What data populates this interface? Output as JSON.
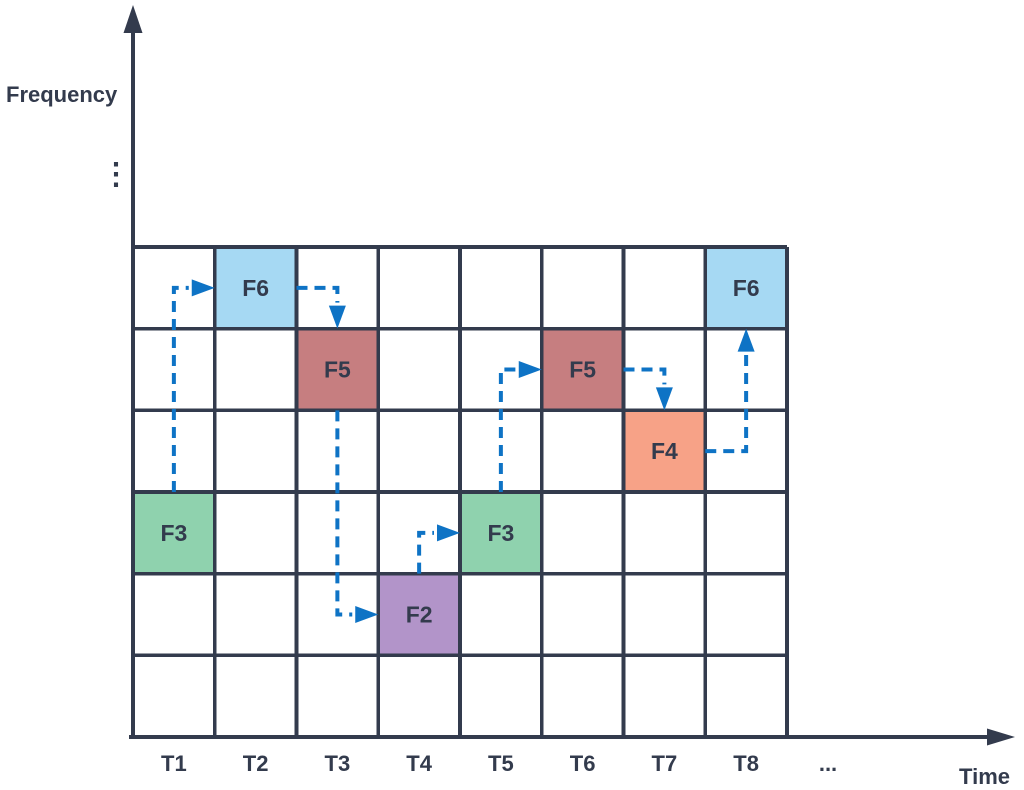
{
  "colors": {
    "navy_ink": "#333b4d",
    "arrow_blue": "#0e73c5",
    "cell_fill": {
      "F2": "#b294c9",
      "F3": "#8fd2ae",
      "F4": "#f7a287",
      "F5": "#c67e80",
      "F6": "#a6d9f3"
    }
  },
  "y_axis": {
    "label": "Frequency",
    "continuation_ellipsis": "⋮"
  },
  "x_axis": {
    "label": "Time",
    "tick_labels": [
      "T1",
      "T2",
      "T3",
      "T4",
      "T5",
      "T6",
      "T7",
      "T8"
    ],
    "continuation_ellipsis": "..."
  },
  "grid": {
    "columns": 8,
    "rows": 6,
    "frequency_rows_top_to_bottom": [
      "F6",
      "F5",
      "F4",
      "F3",
      "F2",
      ""
    ]
  },
  "hop_sequence": [
    {
      "time": "T1",
      "frequency": "F3",
      "col": 1,
      "row": 4
    },
    {
      "time": "T2",
      "frequency": "F6",
      "col": 2,
      "row": 1
    },
    {
      "time": "T3",
      "frequency": "F5",
      "col": 3,
      "row": 2
    },
    {
      "time": "T4",
      "frequency": "F2",
      "col": 4,
      "row": 5
    },
    {
      "time": "T5",
      "frequency": "F3",
      "col": 5,
      "row": 4
    },
    {
      "time": "T6",
      "frequency": "F5",
      "col": 6,
      "row": 2
    },
    {
      "time": "T7",
      "frequency": "F4",
      "col": 7,
      "row": 3
    },
    {
      "time": "T8",
      "frequency": "F6",
      "col": 8,
      "row": 1
    }
  ],
  "hop_arrows": [
    {
      "from": 0,
      "to": 1,
      "route": "up-right"
    },
    {
      "from": 1,
      "to": 2,
      "route": "right-down"
    },
    {
      "from": 2,
      "to": 3,
      "route": "down-right"
    },
    {
      "from": 3,
      "to": 4,
      "route": "up-right"
    },
    {
      "from": 4,
      "to": 5,
      "route": "up-right"
    },
    {
      "from": 5,
      "to": 6,
      "route": "right-down"
    },
    {
      "from": 6,
      "to": 7,
      "route": "right-up"
    }
  ]
}
